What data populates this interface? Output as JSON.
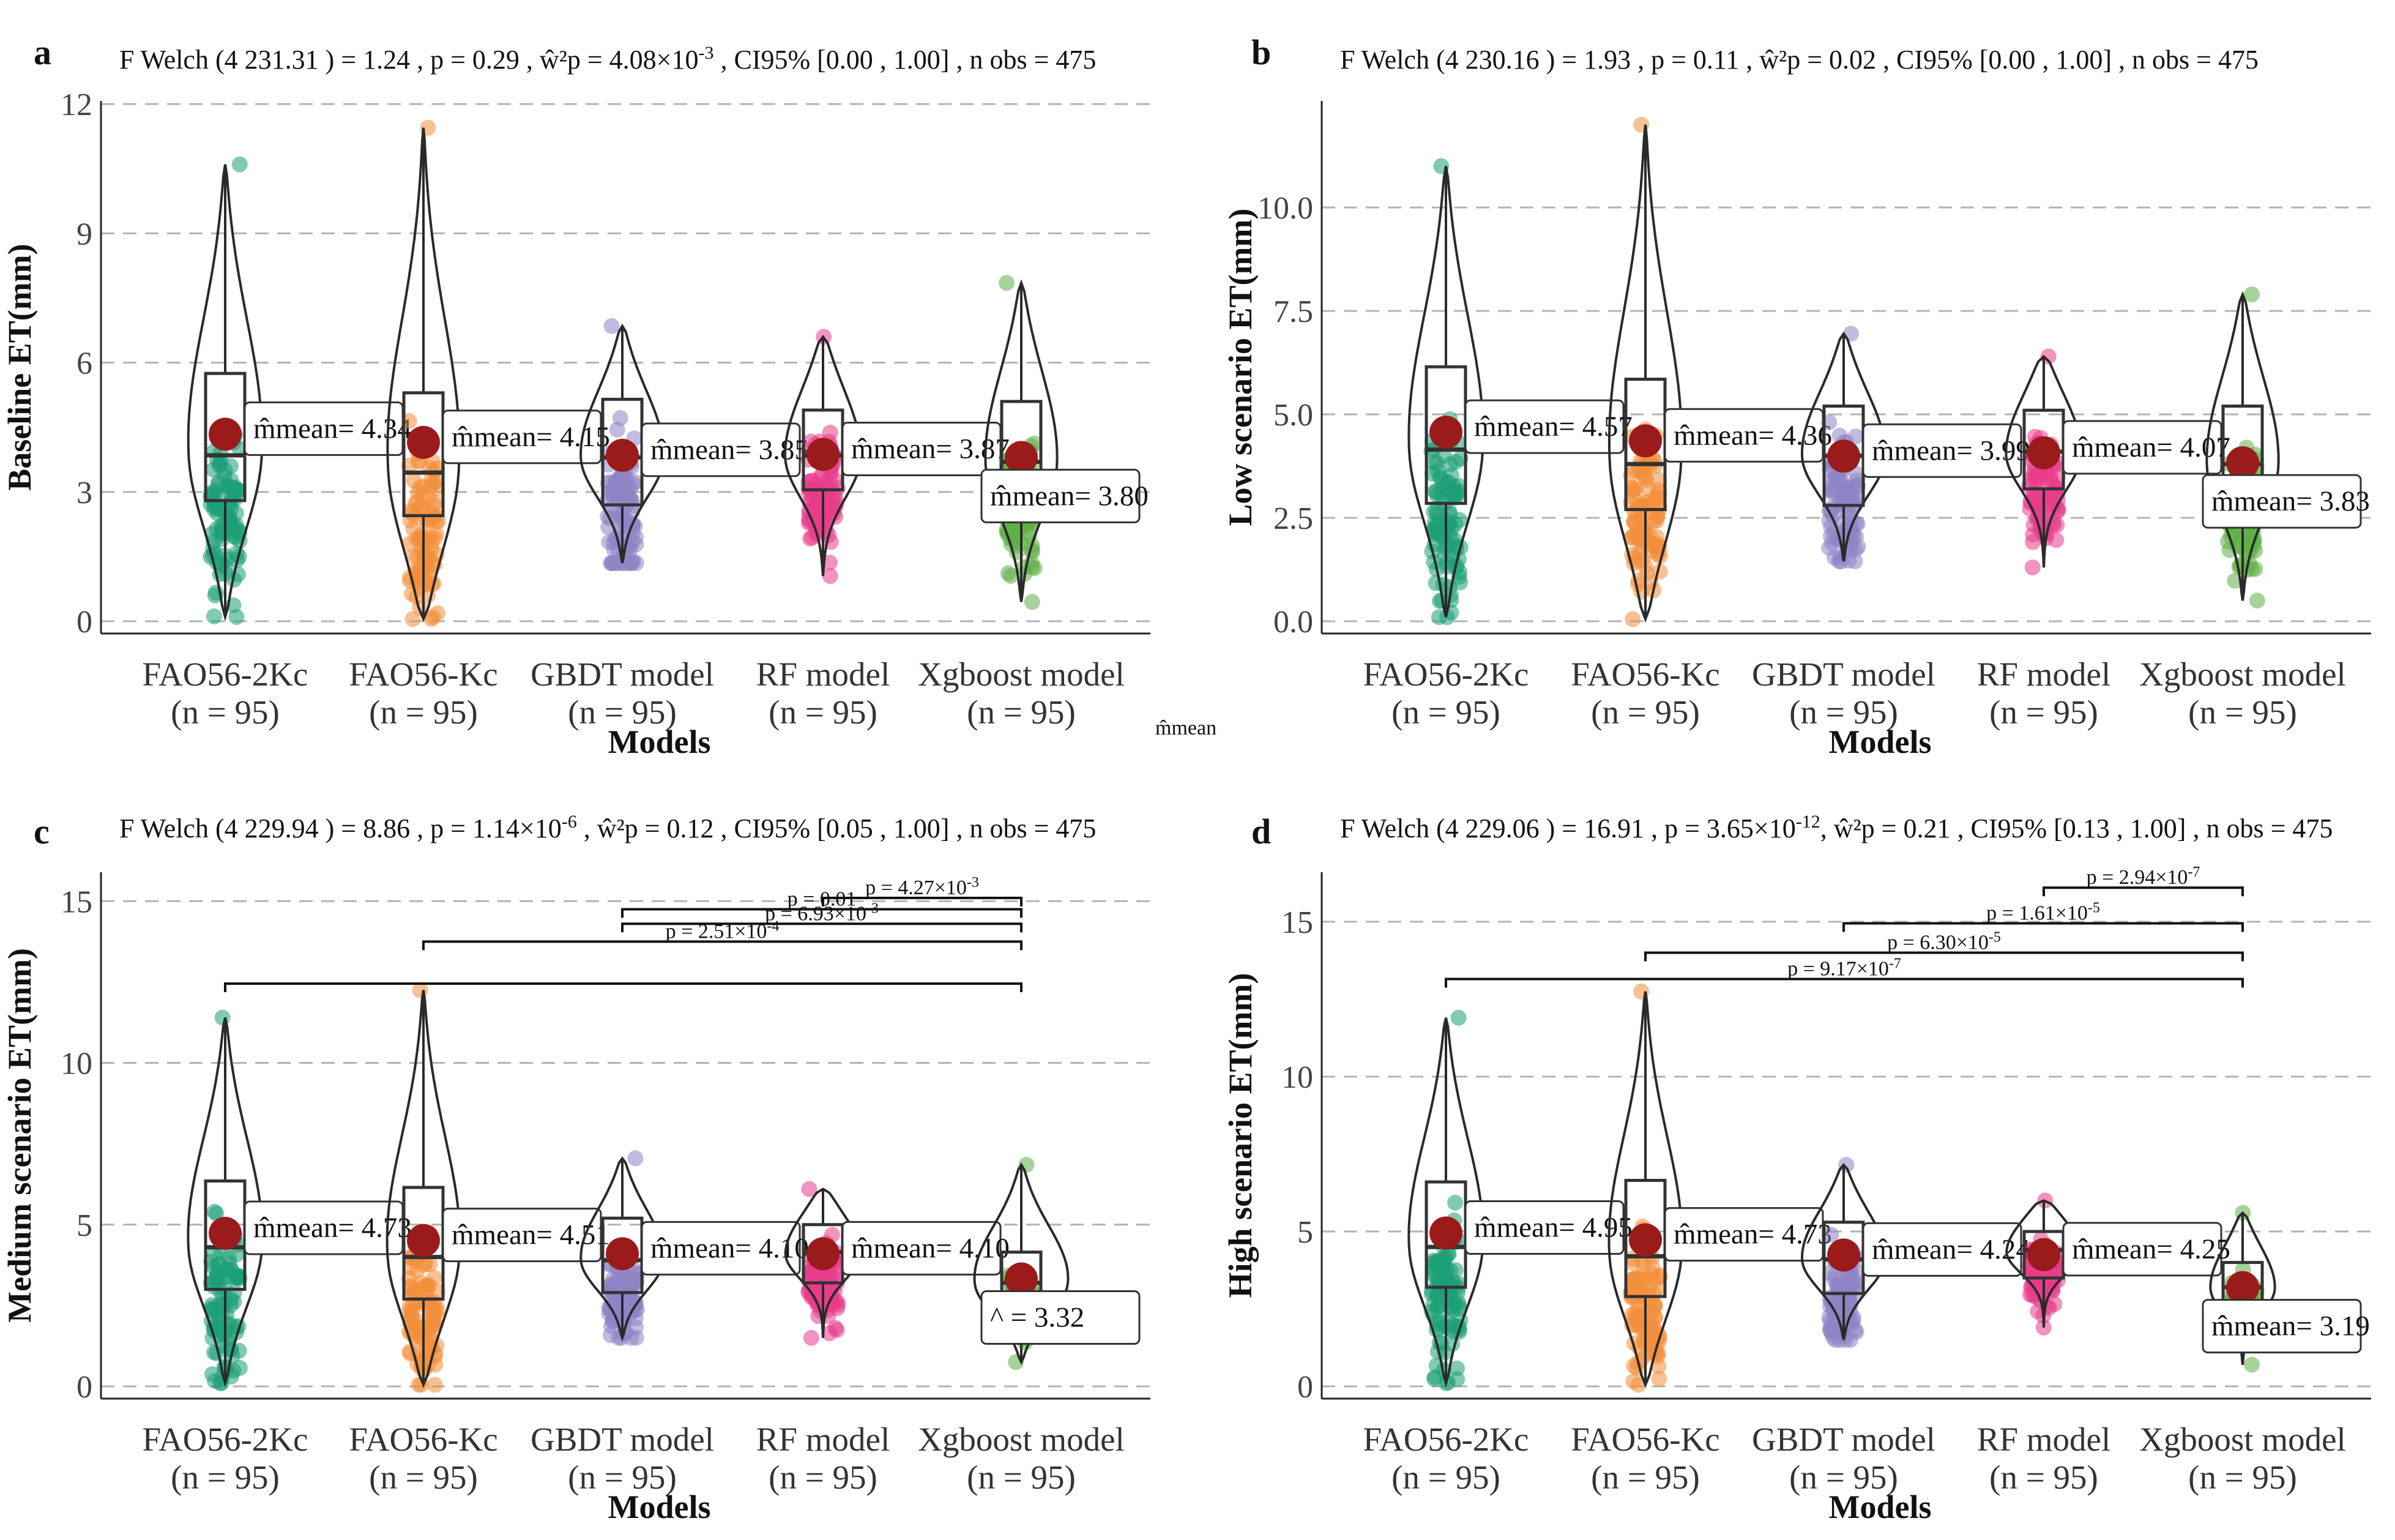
{
  "colors": {
    "FAO56-2Kc": "#1b9e77",
    "FAO56-Kc": "#f28e3b",
    "GBDT model": "#8e84c4",
    "RF model": "#e83d8a",
    "Xgboost model": "#5fae47",
    "mean_dot": "#9b1b1b",
    "grid": "#b3b3b3"
  },
  "stray_label": "m̂mean",
  "chart_data": [
    {
      "panel": "a",
      "type": "violin-box-scatter",
      "subtitle": {
        "pre": "F Welch (4 231.31 ) = 1.24 , p = 0.29 , ŵ²p = ",
        "stat": "4.08×10",
        "exp": "-3",
        "post": " , CI95% [0.00 , 1.00] , n obs = 475"
      },
      "xlabel": "Models",
      "ylabel": "Baseline ET(mm)",
      "ylim": [
        0,
        12
      ],
      "yticks": [
        0,
        3,
        6,
        9,
        12
      ],
      "ytick_labels": [
        "0",
        "3",
        "6",
        "9",
        "12"
      ],
      "categories": [
        "FAO56-2Kc",
        "FAO56-Kc",
        "GBDT model",
        "RF model",
        "Xgboost model"
      ],
      "n_labels": [
        "(n = 95)",
        "(n = 95)",
        "(n = 95)",
        "(n = 95)",
        "(n = 95)"
      ],
      "means": [
        4.34,
        4.15,
        3.85,
        3.87,
        3.8
      ],
      "mean_labels": [
        "m̂mean= 4.34",
        "m̂mean= 4.15",
        "m̂mean= 3.85",
        "m̂mean= 3.87",
        "m̂mean= 3.80"
      ],
      "medians": [
        3.85,
        3.45,
        3.8,
        3.85,
        3.7
      ],
      "q1": [
        2.8,
        2.45,
        2.7,
        3.05,
        2.9
      ],
      "q3": [
        5.75,
        5.3,
        5.15,
        4.9,
        5.1
      ],
      "mins": [
        0.1,
        0.05,
        1.35,
        1.05,
        0.45
      ],
      "maxs": [
        10.6,
        11.45,
        6.85,
        6.6,
        7.85
      ],
      "significance": []
    },
    {
      "panel": "b",
      "type": "violin-box-scatter",
      "subtitle": {
        "pre": "F Welch (4 230.16 ) = 1.93 , p = 0.11 , ŵ²p = ",
        "stat": "0.02",
        "exp": "",
        "post": " , CI95% [0.00 , 1.00] , n obs = 475"
      },
      "xlabel": "Models",
      "ylabel": "Low scenario ET(mm)",
      "ylim": [
        0,
        12.5
      ],
      "yticks": [
        0,
        2.5,
        5,
        7.5,
        10
      ],
      "ytick_labels": [
        "0.0",
        "2.5",
        "5.0",
        "7.5",
        "10.0"
      ],
      "categories": [
        "FAO56-2Kc",
        "FAO56-Kc",
        "GBDT model",
        "RF model",
        "Xgboost model"
      ],
      "n_labels": [
        "(n = 95)",
        "(n = 95)",
        "(n = 95)",
        "(n = 95)",
        "(n = 95)"
      ],
      "means": [
        4.57,
        4.36,
        3.99,
        4.07,
        3.83
      ],
      "mean_labels": [
        "m̂mean= 4.57",
        "m̂mean= 4.36",
        "m̂mean= 3.99",
        "m̂mean= 4.07",
        "m̂mean= 3.83"
      ],
      "medians": [
        4.15,
        3.8,
        4.0,
        4.1,
        3.8
      ],
      "q1": [
        2.85,
        2.7,
        2.8,
        3.2,
        2.9
      ],
      "q3": [
        6.15,
        5.85,
        5.2,
        5.1,
        5.2
      ],
      "mins": [
        0.1,
        0.05,
        1.45,
        1.3,
        0.5
      ],
      "maxs": [
        11.0,
        12.0,
        6.95,
        6.4,
        7.9
      ],
      "significance": []
    },
    {
      "panel": "c",
      "type": "violin-box-scatter",
      "subtitle": {
        "pre": "F Welch (4 229.94 ) = 8.86 , p = ",
        "stat": "1.14×10",
        "exp": "-6",
        "post": " , ŵ²p = 0.12 , CI95% [0.05 , 1.00] , n obs = 475"
      },
      "xlabel": "Models",
      "ylabel": "Medium scenario ET(mm)",
      "ylim": [
        0,
        15.8
      ],
      "yticks": [
        0,
        5,
        10,
        15
      ],
      "ytick_labels": [
        "0",
        "5",
        "10",
        "15"
      ],
      "categories": [
        "FAO56-2Kc",
        "FAO56-Kc",
        "GBDT model",
        "RF model",
        "Xgboost model"
      ],
      "n_labels": [
        "(n = 95)",
        "(n = 95)",
        "(n = 95)",
        "(n = 95)",
        "(n = 95)"
      ],
      "means": [
        4.73,
        4.51,
        4.1,
        4.1,
        3.32
      ],
      "mean_labels": [
        "m̂mean= 4.73",
        "m̂mean= 4.51",
        "m̂mean= 4.10",
        "m̂mean= 4.10",
        "^           = 3.32"
      ],
      "medians": [
        4.3,
        4.0,
        3.9,
        4.15,
        3.2
      ],
      "q1": [
        3.0,
        2.7,
        2.9,
        3.2,
        2.7
      ],
      "q3": [
        6.35,
        6.15,
        5.2,
        5.0,
        4.15
      ],
      "mins": [
        0.1,
        0.05,
        1.5,
        1.5,
        0.75
      ],
      "maxs": [
        11.4,
        12.25,
        7.05,
        6.1,
        6.85
      ],
      "significance": [
        {
          "from": 3,
          "to": 4,
          "label": "p =  4.27×10",
          "exp": "-3",
          "y": 15.1
        },
        {
          "from": 2,
          "to": 4,
          "label": "p =  0.01",
          "exp": "",
          "y": 14.75
        },
        {
          "from": 2,
          "to": 4,
          "label": "p =  6.93×10",
          "exp": "-3",
          "y": 14.3
        },
        {
          "from": 1,
          "to": 4,
          "label": "p = 2.51×10",
          "exp": "-4",
          "y": 13.75
        },
        {
          "from": 0,
          "to": 4,
          "label": "",
          "exp": "",
          "y": 12.45
        }
      ]
    },
    {
      "panel": "d",
      "type": "violin-box-scatter",
      "subtitle": {
        "pre": "F Welch (4 229.06 ) = 16.91 , p = ",
        "stat": "3.65×10",
        "exp": "-12",
        "post": ", ŵ²p = 0.21 , CI95% [0.13 , 1.00] , n obs = 475"
      },
      "xlabel": "Models",
      "ylabel": "High scenario ET(mm)",
      "ylim": [
        0,
        16.5
      ],
      "yticks": [
        0,
        5,
        10,
        15
      ],
      "ytick_labels": [
        "0",
        "5",
        "10",
        "15"
      ],
      "categories": [
        "FAO56-2Kc",
        "FAO56-Kc",
        "GBDT model",
        "RF model",
        "Xgboost model"
      ],
      "n_labels": [
        "(n = 95)",
        "(n = 95)",
        "(n = 95)",
        "(n = 95)",
        "(n = 95)"
      ],
      "means": [
        4.95,
        4.73,
        4.24,
        4.25,
        3.19
      ],
      "mean_labels": [
        "m̂mean= 4.95",
        "m̂mean= 4.73",
        "m̂mean= 4.24",
        "m̂mean= 4.25",
        "m̂mean= 3.19"
      ],
      "medians": [
        4.5,
        4.2,
        4.1,
        4.4,
        3.2
      ],
      "q1": [
        3.2,
        2.9,
        3.0,
        3.5,
        2.7
      ],
      "q3": [
        6.6,
        6.65,
        5.3,
        5.0,
        4.0
      ],
      "mins": [
        0.1,
        0.05,
        1.5,
        1.9,
        0.7
      ],
      "maxs": [
        11.9,
        12.75,
        7.15,
        6.0,
        5.6
      ],
      "significance": [
        {
          "from": 3,
          "to": 4,
          "label": "p = 2.94×10",
          "exp": "-7",
          "y": 16.1
        },
        {
          "from": 2,
          "to": 4,
          "label": "p = 1.61×10",
          "exp": "-5",
          "y": 14.95
        },
        {
          "from": 1,
          "to": 4,
          "label": "p = 6.30×10",
          "exp": "-5",
          "y": 14.0
        },
        {
          "from": 0,
          "to": 4,
          "label": "p =  9.17×10",
          "exp": "-7",
          "y": 13.15
        }
      ]
    }
  ]
}
